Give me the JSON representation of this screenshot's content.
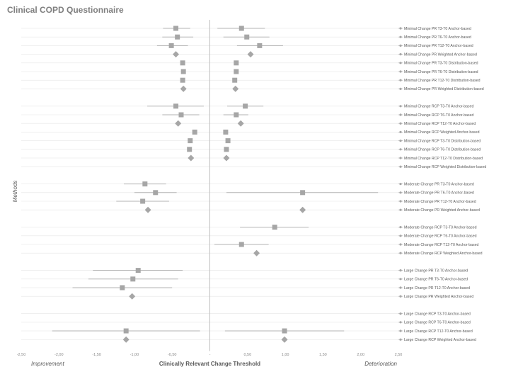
{
  "chart_data": {
    "type": "forest",
    "title": "Clinical COPD Questionnaire",
    "ylabel": "Methods",
    "footer": {
      "left": "Improvement",
      "center": "Clinically Relevant Change Threshold",
      "right": "Deterioration"
    },
    "xlim": [
      -2.5,
      2.5
    ],
    "xticks": [
      "-2,50",
      "-2,00",
      "-1,50",
      "-1,00",
      "-0,50",
      "-",
      "0,50",
      "1,00",
      "1,50",
      "2,00",
      "2,50"
    ],
    "groups": [
      {
        "rows": [
          {
            "label": "Minimal Change PR T3-T0 Anchor-based",
            "left": {
              "est": -0.45,
              "lo": -0.62,
              "hi": -0.26,
              "shape": "square"
            },
            "right": {
              "est": 0.42,
              "lo": 0.1,
              "hi": 0.73,
              "shape": "square"
            }
          },
          {
            "label": "Minimal Change PR T6-T0 Anchor-based",
            "left": {
              "est": -0.43,
              "lo": -0.63,
              "hi": -0.22,
              "shape": "square"
            },
            "right": {
              "est": 0.49,
              "lo": 0.18,
              "hi": 0.79,
              "shape": "square"
            }
          },
          {
            "label": "Minimal Change PR T12-T0 Anchor-based",
            "left": {
              "est": -0.51,
              "lo": -0.7,
              "hi": -0.29,
              "shape": "square"
            },
            "right": {
              "est": 0.66,
              "lo": 0.36,
              "hi": 0.97,
              "shape": "square"
            }
          },
          {
            "label": "Minimal Change PR Weighted Anchor-based",
            "left": {
              "est": -0.45,
              "shape": "diamond"
            },
            "right": {
              "est": 0.54,
              "shape": "diamond"
            }
          },
          {
            "label": "Minimal Change PR T3-T0 Distribution-based",
            "left": {
              "est": -0.36,
              "shape": "square"
            },
            "right": {
              "est": 0.35,
              "shape": "square"
            }
          },
          {
            "label": "Minimal Change PR T6-T0 Distribution-based",
            "left": {
              "est": -0.35,
              "shape": "square"
            },
            "right": {
              "est": 0.35,
              "shape": "square"
            }
          },
          {
            "label": "Minimal Change PR T12-T0 Distribution-based",
            "left": {
              "est": -0.36,
              "shape": "square"
            },
            "right": {
              "est": 0.33,
              "shape": "square"
            }
          },
          {
            "label": "Minimal Change PR Weighted Distribution-based",
            "left": {
              "est": -0.35,
              "shape": "diamond"
            },
            "right": {
              "est": 0.34,
              "shape": "diamond"
            }
          }
        ]
      },
      {
        "rows": [
          {
            "label": "Minimal Change RCP T3-T0 Anchor-based",
            "left": {
              "est": -0.45,
              "lo": -0.83,
              "hi": -0.08,
              "shape": "square"
            },
            "right": {
              "est": 0.47,
              "lo": 0.23,
              "hi": 0.71,
              "shape": "square"
            }
          },
          {
            "label": "Minimal Change RCP T6-T0 Anchor-based",
            "left": {
              "est": -0.38,
              "lo": -0.63,
              "hi": -0.14,
              "shape": "square"
            },
            "right": {
              "est": 0.35,
              "lo": 0.18,
              "hi": 0.51,
              "shape": "square"
            }
          },
          {
            "label": "Minimal Change RCP T12-T0 Anchor-based",
            "left": {
              "est": -0.42,
              "shape": "diamond"
            },
            "right": {
              "est": 0.41,
              "shape": "diamond"
            }
          },
          {
            "label": "Minimal Change RCP Weighted Anchor-based",
            "left": {
              "est": -0.2,
              "shape": "square"
            },
            "right": {
              "est": 0.21,
              "shape": "square"
            }
          },
          {
            "label": "Minimal Change RCP T3-T0 Distribution-based",
            "left": {
              "est": -0.26,
              "shape": "square"
            },
            "right": {
              "est": 0.24,
              "shape": "square"
            }
          },
          {
            "label": "Minimal Change RCP T6-T0 Distribution-based",
            "left": {
              "est": -0.27,
              "shape": "square"
            },
            "right": {
              "est": 0.22,
              "shape": "square"
            }
          },
          {
            "label": "Minimal Change RCP T12-T0 Distribution-based",
            "left": {
              "est": -0.25,
              "shape": "diamond"
            },
            "right": {
              "est": 0.22,
              "shape": "diamond"
            }
          },
          {
            "label": "Minimal Change RCP Weighted Distribution-based",
            "left": null,
            "right": null
          }
        ]
      },
      {
        "rows": [
          {
            "label": "Moderate Change PR T3-T0 Anchor-based",
            "left": {
              "est": -0.86,
              "lo": -1.14,
              "hi": -0.58,
              "shape": "square"
            },
            "right": null
          },
          {
            "label": "Moderate Change PR T6-T0 Anchor-based",
            "left": {
              "est": -0.72,
              "lo": -1.0,
              "hi": -0.44,
              "shape": "square"
            },
            "right": {
              "est": 1.23,
              "lo": 0.22,
              "hi": 2.23,
              "shape": "square"
            }
          },
          {
            "label": "Moderate Change PR T12-T0 Anchor-based",
            "left": {
              "est": -0.89,
              "lo": -1.24,
              "hi": -0.54,
              "shape": "square"
            },
            "right": null
          },
          {
            "label": "Moderate Change PR Weighted Anchor-based",
            "left": {
              "est": -0.82,
              "shape": "diamond"
            },
            "right": {
              "est": 1.23,
              "shape": "diamond"
            }
          }
        ]
      },
      {
        "rows": [
          {
            "label": "Moderate Change RCP T3-T0 Anchor-based",
            "left": null,
            "right": {
              "est": 0.86,
              "lo": 0.4,
              "hi": 1.31,
              "shape": "square"
            }
          },
          {
            "label": "Moderate Change RCP T6-T0 Anchor-based",
            "left": null,
            "right": null
          },
          {
            "label": "Moderate Change RCP T12-T0 Anchor-based",
            "left": null,
            "right": {
              "est": 0.42,
              "lo": 0.06,
              "hi": 0.78,
              "shape": "square"
            }
          },
          {
            "label": "Moderate Change RCP Weighted Anchor-based",
            "left": null,
            "right": {
              "est": 0.62,
              "shape": "diamond"
            }
          }
        ]
      },
      {
        "rows": [
          {
            "label": "Large Change PR T3-T0 Anchor-based",
            "left": {
              "est": -0.95,
              "lo": -1.55,
              "hi": -0.36,
              "shape": "square"
            },
            "right": null
          },
          {
            "label": "Large Change PR T6-T0 Anchor-based",
            "left": {
              "est": -1.02,
              "lo": -1.61,
              "hi": -0.42,
              "shape": "square"
            },
            "right": null
          },
          {
            "label": "Large Change PR T12-T0 Anchor-based",
            "left": {
              "est": -1.16,
              "lo": -1.82,
              "hi": -0.5,
              "shape": "square"
            },
            "right": null
          },
          {
            "label": "Large Change PR Weighted Anchor-based",
            "left": {
              "est": -1.03,
              "shape": "diamond"
            },
            "right": null
          }
        ]
      },
      {
        "rows": [
          {
            "label": "Large Change RCP T3-T0 Anchor-based",
            "left": null,
            "right": null
          },
          {
            "label": "Large Change RCP T6-T0 Anchor-based",
            "left": null,
            "right": null
          },
          {
            "label": "Large Change RCP T12-T0 Anchor-based",
            "left": {
              "est": -1.11,
              "lo": -2.09,
              "hi": -0.13,
              "shape": "square"
            },
            "right": {
              "est": 0.99,
              "lo": 0.2,
              "hi": 1.78,
              "shape": "square"
            }
          },
          {
            "label": "Large Change RCP Weighted Anchor-based",
            "left": {
              "est": -1.11,
              "shape": "diamond"
            },
            "right": {
              "est": 0.99,
              "shape": "diamond"
            }
          }
        ]
      }
    ],
    "colors": {
      "marker": "#a6a6a6",
      "ci": "#b3b3b3",
      "grid": "#e6e6e6",
      "zero": "#bfbfbf"
    },
    "grid": true,
    "legend": "right"
  }
}
